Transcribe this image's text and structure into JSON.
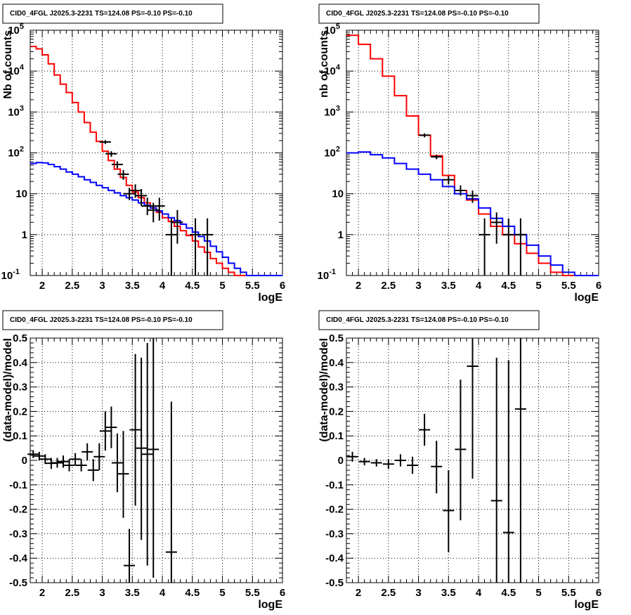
{
  "chart_data": [
    {
      "type": "line",
      "title": "CID0_4FGL J2025.3-2231 TS=124.08 PS=-0.10 PS=-0.10",
      "xlabel": "logE",
      "ylabel": "Nb of counts",
      "xlim": [
        1.8,
        6.0
      ],
      "ylim": [
        0.1,
        100000
      ],
      "yscale": "log",
      "grid": true,
      "x_ticks": [
        "2",
        "2.5",
        "3",
        "3.5",
        "4",
        "4.5",
        "5",
        "5.5",
        "6"
      ],
      "y_ticks": [
        "10^-1",
        "1",
        "10",
        "10^2",
        "10^3",
        "10^4",
        "10^5"
      ],
      "bin_edges": [
        1.8,
        1.9,
        2.0,
        2.1,
        2.2,
        2.3,
        2.4,
        2.5,
        2.6,
        2.7,
        2.8,
        2.9,
        3.0,
        3.1,
        3.2,
        3.3,
        3.4,
        3.5,
        3.6,
        3.7,
        3.8,
        3.9,
        4.0,
        4.1,
        4.2,
        4.3,
        4.4,
        4.5,
        4.6,
        4.7,
        4.8,
        4.9,
        5.0,
        5.1,
        5.2,
        5.3,
        5.4,
        5.5,
        5.6,
        5.7,
        5.8,
        5.9,
        6.0
      ],
      "series": [
        {
          "color": "#ff0000",
          "values": [
            40000,
            35000,
            25000,
            15000,
            8000,
            4800,
            3000,
            1700,
            1000,
            550,
            320,
            190,
            110,
            65,
            40,
            25,
            16,
            11,
            8,
            6,
            4.5,
            3.5,
            2.6,
            2.1,
            1.6,
            1.25,
            0.95,
            0.7,
            0.5,
            0.37,
            0.26,
            0.2,
            0.15,
            0.12,
            0.1,
            0.1,
            0.1,
            0.1,
            0.1,
            0.1,
            0.1,
            0.1
          ]
        },
        {
          "color": "#0000ff",
          "values": [
            55,
            58,
            57,
            52,
            46,
            40,
            34,
            30,
            26,
            22,
            19,
            16,
            14,
            12,
            10.5,
            9,
            8,
            7,
            6,
            5.2,
            4.5,
            3.8,
            3.2,
            2.6,
            2.2,
            1.8,
            1.45,
            1.15,
            0.9,
            0.7,
            0.52,
            0.38,
            0.28,
            0.2,
            0.15,
            0.12,
            0.1,
            0.1,
            0.1,
            0.1,
            0.1,
            0.1
          ]
        }
      ],
      "points": [
        {
          "x": 3.05,
          "y": 185,
          "ylo": 165,
          "yhi": 205
        },
        {
          "x": 3.15,
          "y": 95,
          "ylo": 80,
          "yhi": 110
        },
        {
          "x": 3.25,
          "y": 52,
          "ylo": 42,
          "yhi": 62
        },
        {
          "x": 3.35,
          "y": 30,
          "ylo": 22,
          "yhi": 38
        },
        {
          "x": 3.45,
          "y": 10,
          "ylo": 7,
          "yhi": 14
        },
        {
          "x": 3.55,
          "y": 12,
          "ylo": 8,
          "yhi": 17
        },
        {
          "x": 3.65,
          "y": 9,
          "ylo": 5,
          "yhi": 13
        },
        {
          "x": 3.75,
          "y": 5,
          "ylo": 3,
          "yhi": 8
        },
        {
          "x": 3.85,
          "y": 4,
          "ylo": 2,
          "yhi": 6
        },
        {
          "x": 3.95,
          "y": 5,
          "ylo": 2.2,
          "yhi": 8
        },
        {
          "x": 4.15,
          "y": 1,
          "ylo": 0.1,
          "yhi": 2.5
        },
        {
          "x": 4.25,
          "y": 2,
          "ylo": 0.6,
          "yhi": 4
        },
        {
          "x": 4.55,
          "y": 1,
          "ylo": 0.1,
          "yhi": 2.5
        },
        {
          "x": 4.75,
          "y": 1,
          "ylo": 0.1,
          "yhi": 2.5
        }
      ]
    },
    {
      "type": "line",
      "title": "CID0_4FGL J2025.3-2231 TS=124.08 PS=-0.10 PS=-0.10",
      "xlabel": "logE",
      "ylabel": "nb of counts",
      "xlim": [
        1.8,
        6.0
      ],
      "ylim": [
        0.1,
        100000
      ],
      "yscale": "log",
      "grid": true,
      "x_ticks": [
        "2",
        "2.5",
        "3",
        "3.5",
        "4",
        "4.5",
        "5",
        "5.5",
        "6"
      ],
      "y_ticks": [
        "10^-1",
        "1",
        "10",
        "10^2",
        "10^3",
        "10^4",
        "10^5"
      ],
      "bin_edges": [
        1.8,
        2.0,
        2.2,
        2.4,
        2.6,
        2.8,
        3.0,
        3.2,
        3.4,
        3.6,
        3.8,
        4.0,
        4.2,
        4.4,
        4.6,
        4.8,
        5.0,
        5.2,
        5.4,
        5.6,
        5.8,
        6.0
      ],
      "series": [
        {
          "color": "#ff0000",
          "values": [
            75000,
            45000,
            20000,
            7500,
            2500,
            800,
            270,
            85,
            28,
            12,
            7,
            3.2,
            1.6,
            1.0,
            0.6,
            0.35,
            0.2,
            0.12,
            0.1,
            0.1,
            0.1
          ]
        },
        {
          "color": "#0000ff",
          "values": [
            100,
            105,
            90,
            75,
            55,
            40,
            30,
            22,
            15,
            10,
            7.5,
            4.5,
            2.5,
            1.6,
            1.0,
            0.55,
            0.3,
            0.18,
            0.12,
            0.1,
            0.1
          ]
        }
      ],
      "points": [
        {
          "x": 3.1,
          "y": 270,
          "ylo": 240,
          "yhi": 300
        },
        {
          "x": 3.3,
          "y": 80,
          "ylo": 70,
          "yhi": 90
        },
        {
          "x": 3.5,
          "y": 22,
          "ylo": 17,
          "yhi": 27
        },
        {
          "x": 3.7,
          "y": 12,
          "ylo": 9,
          "yhi": 16
        },
        {
          "x": 3.9,
          "y": 9,
          "ylo": 6,
          "yhi": 12
        },
        {
          "x": 4.1,
          "y": 1,
          "ylo": 0.1,
          "yhi": 2.5
        },
        {
          "x": 4.3,
          "y": 2,
          "ylo": 0.6,
          "yhi": 3.5
        },
        {
          "x": 4.5,
          "y": 1,
          "ylo": 0.1,
          "yhi": 2.5
        },
        {
          "x": 4.7,
          "y": 1,
          "ylo": 0.1,
          "yhi": 2.5
        }
      ]
    },
    {
      "type": "scatter",
      "title": "CID0_4FGL J2025.3-2231 TS=124.08 PS=-0.10 PS=-0.10",
      "xlabel": "logE",
      "ylabel": "(data-model)/model",
      "xlim": [
        1.8,
        6.0
      ],
      "ylim": [
        -0.5,
        0.5
      ],
      "yscale": "linear",
      "grid": true,
      "x_ticks": [
        "2",
        "2.5",
        "3",
        "3.5",
        "4",
        "4.5",
        "5",
        "5.5",
        "6"
      ],
      "y_ticks": [
        "-0.5",
        "-0.4",
        "-0.3",
        "-0.2",
        "-0.1",
        "0",
        "0.1",
        "0.2",
        "0.3",
        "0.4",
        "0.5"
      ],
      "points": [
        {
          "x": 1.85,
          "y": 0.025,
          "ylo": 0.01,
          "yhi": 0.04
        },
        {
          "x": 1.95,
          "y": 0.018,
          "ylo": 0.0,
          "yhi": 0.035
        },
        {
          "x": 2.05,
          "y": 0.005,
          "ylo": -0.015,
          "yhi": 0.025
        },
        {
          "x": 2.15,
          "y": -0.012,
          "ylo": -0.035,
          "yhi": 0.01
        },
        {
          "x": 2.25,
          "y": -0.01,
          "ylo": -0.03,
          "yhi": 0.01
        },
        {
          "x": 2.35,
          "y": -0.005,
          "ylo": -0.03,
          "yhi": 0.02
        },
        {
          "x": 2.45,
          "y": -0.02,
          "ylo": -0.045,
          "yhi": 0.005
        },
        {
          "x": 2.55,
          "y": 0.005,
          "ylo": -0.02,
          "yhi": 0.03
        },
        {
          "x": 2.65,
          "y": -0.02,
          "ylo": -0.045,
          "yhi": 0.005
        },
        {
          "x": 2.75,
          "y": 0.035,
          "ylo": 0.0,
          "yhi": 0.07
        },
        {
          "x": 2.85,
          "y": -0.04,
          "ylo": -0.085,
          "yhi": 0.005
        },
        {
          "x": 2.95,
          "y": 0.015,
          "ylo": -0.04,
          "yhi": 0.07
        },
        {
          "x": 3.05,
          "y": 0.12,
          "ylo": 0.04,
          "yhi": 0.2
        },
        {
          "x": 3.15,
          "y": 0.135,
          "ylo": 0.05,
          "yhi": 0.22
        },
        {
          "x": 3.25,
          "y": -0.01,
          "ylo": -0.13,
          "yhi": 0.11
        },
        {
          "x": 3.35,
          "y": -0.055,
          "ylo": -0.235,
          "yhi": 0.12
        },
        {
          "x": 3.45,
          "y": -0.43,
          "ylo": -0.5,
          "yhi": -0.28
        },
        {
          "x": 3.55,
          "y": 0.125,
          "ylo": -0.185,
          "yhi": 0.435
        },
        {
          "x": 3.65,
          "y": 0.05,
          "ylo": -0.325,
          "yhi": 0.42
        },
        {
          "x": 3.75,
          "y": 0.025,
          "ylo": -0.43,
          "yhi": 0.48
        },
        {
          "x": 3.85,
          "y": 0.045,
          "ylo": -0.48,
          "yhi": 0.5
        },
        {
          "x": 4.15,
          "y": -0.375,
          "ylo": -0.5,
          "yhi": 0.24
        }
      ]
    },
    {
      "type": "scatter",
      "title": "CID0_4FGL J2025.3-2231 TS=124.08 PS=-0.10 PS=-0.10",
      "xlabel": "logE",
      "ylabel": "(data-model)/model",
      "xlim": [
        1.8,
        6.0
      ],
      "ylim": [
        -0.5,
        0.5
      ],
      "yscale": "linear",
      "grid": true,
      "x_ticks": [
        "2",
        "2.5",
        "3",
        "3.5",
        "4",
        "4.5",
        "5",
        "5.5",
        "6"
      ],
      "y_ticks": [
        "-0.5",
        "-0.4",
        "-0.3",
        "-0.2",
        "-0.1",
        "0",
        "0.1",
        "0.2",
        "0.3",
        "0.4",
        "0.5"
      ],
      "points": [
        {
          "x": 1.9,
          "y": 0.015,
          "ylo": -0.005,
          "yhi": 0.035
        },
        {
          "x": 2.1,
          "y": -0.005,
          "ylo": -0.02,
          "yhi": 0.01
        },
        {
          "x": 2.3,
          "y": -0.01,
          "ylo": -0.025,
          "yhi": 0.005
        },
        {
          "x": 2.5,
          "y": -0.015,
          "ylo": -0.035,
          "yhi": 0.005
        },
        {
          "x": 2.7,
          "y": 0.0,
          "ylo": -0.025,
          "yhi": 0.025
        },
        {
          "x": 2.9,
          "y": -0.02,
          "ylo": -0.055,
          "yhi": 0.015
        },
        {
          "x": 3.1,
          "y": 0.125,
          "ylo": 0.06,
          "yhi": 0.19
        },
        {
          "x": 3.3,
          "y": -0.025,
          "ylo": -0.135,
          "yhi": 0.08
        },
        {
          "x": 3.5,
          "y": -0.205,
          "ylo": -0.375,
          "yhi": -0.04
        },
        {
          "x": 3.7,
          "y": 0.045,
          "ylo": -0.245,
          "yhi": 0.33
        },
        {
          "x": 3.9,
          "y": 0.385,
          "ylo": -0.075,
          "yhi": 0.5
        },
        {
          "x": 4.3,
          "y": -0.165,
          "ylo": -0.5,
          "yhi": 0.42
        },
        {
          "x": 4.5,
          "y": -0.295,
          "ylo": -0.5,
          "yhi": 0.41
        },
        {
          "x": 4.7,
          "y": 0.21,
          "ylo": -0.5,
          "yhi": 0.5
        }
      ]
    }
  ]
}
